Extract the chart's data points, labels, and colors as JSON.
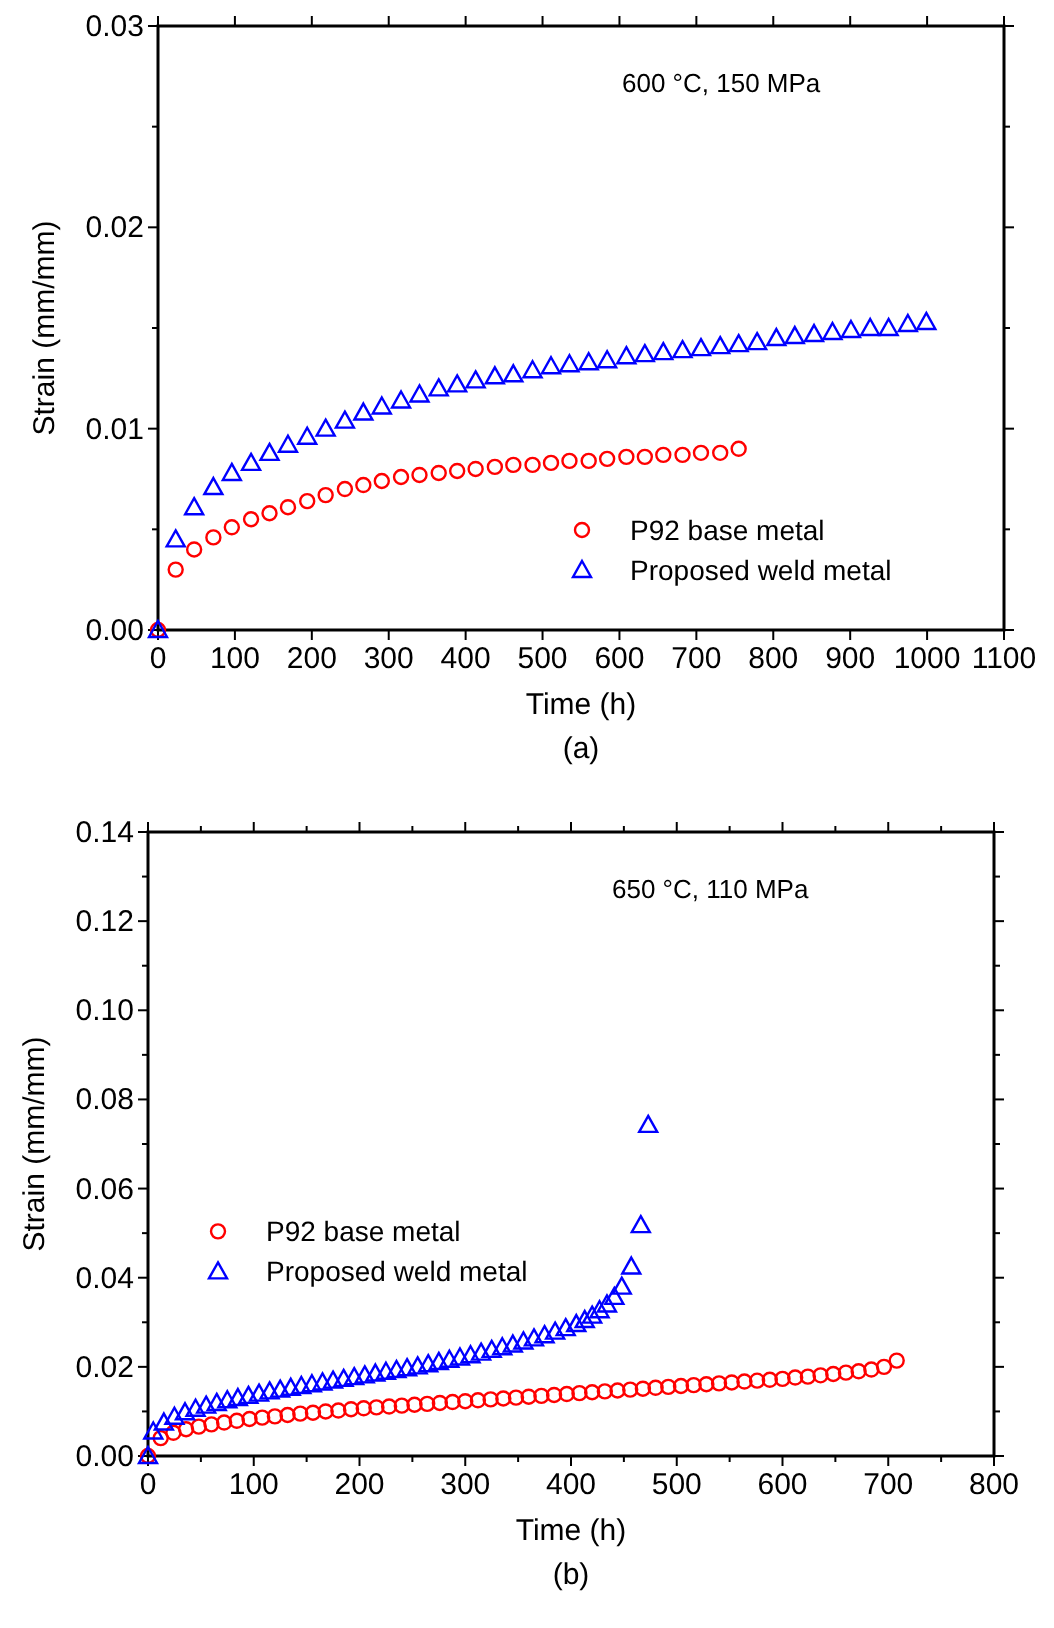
{
  "chart_data": [
    {
      "type": "scatter",
      "xlabel": "Time (h)",
      "ylabel": "Strain (mm/mm)",
      "annotations": [
        "600 °C, 150 MPa",
        "(a)"
      ],
      "xlim": [
        0,
        1100
      ],
      "xticks": [
        0,
        100,
        200,
        300,
        400,
        500,
        600,
        700,
        800,
        900,
        1000,
        1100
      ],
      "ylim": [
        0,
        0.03
      ],
      "yticks": [
        {
          "value": 0,
          "label": "0.00"
        },
        {
          "value": 0.005,
          "label": null
        },
        {
          "value": 0.01,
          "label": "0.01"
        },
        {
          "value": 0.015,
          "label": null
        },
        {
          "value": 0.02,
          "label": "0.02"
        },
        {
          "value": 0.025,
          "label": null
        },
        {
          "value": 0.03,
          "label": "0.03"
        }
      ],
      "grid": false,
      "legend": "bottom right",
      "series": [
        {
          "name": "P92 base metal",
          "color": "#ff0000",
          "marker": "circle",
          "x": [
            0,
            23,
            47,
            72,
            96,
            121,
            145,
            169,
            194,
            218,
            243,
            267,
            291,
            316,
            340,
            365,
            389,
            413,
            438,
            462,
            487,
            511,
            535,
            560,
            584,
            609,
            633,
            657,
            682,
            706,
            731,
            755
          ],
          "values": [
            0,
            0.003,
            0.004,
            0.0046,
            0.0051,
            0.0055,
            0.0058,
            0.0061,
            0.0064,
            0.0067,
            0.007,
            0.0072,
            0.0074,
            0.0076,
            0.0077,
            0.0078,
            0.0079,
            0.008,
            0.0081,
            0.0082,
            0.0082,
            0.0083,
            0.0084,
            0.0084,
            0.0085,
            0.0086,
            0.0086,
            0.0087,
            0.0087,
            0.0088,
            0.0088,
            0.009
          ]
        },
        {
          "name": "Proposed weld metal",
          "color": "#0000ff",
          "marker": "triangle",
          "x": [
            0,
            23,
            47,
            72,
            96,
            121,
            145,
            169,
            194,
            218,
            243,
            267,
            291,
            316,
            340,
            365,
            389,
            413,
            438,
            462,
            487,
            511,
            535,
            560,
            584,
            609,
            633,
            657,
            682,
            706,
            731,
            755,
            779,
            804,
            828,
            853,
            877,
            901,
            926,
            950,
            975,
            999
          ],
          "values": [
            0,
            0.0045,
            0.0061,
            0.0071,
            0.0078,
            0.0083,
            0.0088,
            0.0092,
            0.0096,
            0.01,
            0.0104,
            0.0108,
            0.0111,
            0.0114,
            0.0117,
            0.012,
            0.0122,
            0.0124,
            0.0126,
            0.0127,
            0.0129,
            0.0131,
            0.0132,
            0.0133,
            0.0134,
            0.0136,
            0.0137,
            0.0138,
            0.0139,
            0.014,
            0.0141,
            0.0142,
            0.0143,
            0.0145,
            0.0146,
            0.0147,
            0.0148,
            0.0149,
            0.015,
            0.015,
            0.0152,
            0.0153
          ]
        }
      ]
    },
    {
      "type": "scatter",
      "xlabel": "Time (h)",
      "ylabel": "Strain (mm/mm)",
      "annotations": [
        "650 °C, 110 MPa",
        "(b)"
      ],
      "xlim": [
        0,
        800
      ],
      "xticks": [
        0,
        {
          "value": 50,
          "label": null
        },
        100,
        {
          "value": 150,
          "label": null
        },
        200,
        {
          "value": 250,
          "label": null
        },
        300,
        {
          "value": 350,
          "label": null
        },
        400,
        {
          "value": 450,
          "label": null
        },
        500,
        {
          "value": 550,
          "label": null
        },
        600,
        {
          "value": 650,
          "label": null
        },
        700,
        {
          "value": 750,
          "label": null
        },
        800
      ],
      "ylim": [
        0,
        0.14
      ],
      "yticks": [
        {
          "value": 0,
          "label": "0.00"
        },
        {
          "value": 0.01,
          "label": null
        },
        {
          "value": 0.02,
          "label": "0.02"
        },
        {
          "value": 0.03,
          "label": null
        },
        {
          "value": 0.04,
          "label": "0.04"
        },
        {
          "value": 0.05,
          "label": null
        },
        {
          "value": 0.06,
          "label": "0.06"
        },
        {
          "value": 0.07,
          "label": null
        },
        {
          "value": 0.08,
          "label": "0.08"
        },
        {
          "value": 0.09,
          "label": null
        },
        {
          "value": 0.1,
          "label": "0.10"
        },
        {
          "value": 0.11,
          "label": null
        },
        {
          "value": 0.12,
          "label": "0.12"
        },
        {
          "value": 0.13,
          "label": null
        },
        {
          "value": 0.14,
          "label": "0.14"
        }
      ],
      "grid": false,
      "legend": "left",
      "series": [
        {
          "name": "P92 base metal",
          "color": "#ff0000",
          "marker": "circle",
          "x": [
            0,
            12,
            24,
            36,
            48,
            60,
            72,
            84,
            96,
            108,
            120,
            132,
            144,
            156,
            168,
            180,
            192,
            204,
            216,
            228,
            240,
            252,
            264,
            276,
            288,
            300,
            312,
            324,
            336,
            348,
            360,
            372,
            384,
            396,
            408,
            420,
            432,
            444,
            456,
            468,
            480,
            492,
            504,
            516,
            528,
            540,
            552,
            564,
            576,
            588,
            600,
            612,
            624,
            636,
            648,
            660,
            672,
            684,
            696,
            708
          ],
          "values": [
            0,
            0.004,
            0.0052,
            0.006,
            0.0066,
            0.0071,
            0.0075,
            0.0079,
            0.0083,
            0.0086,
            0.0089,
            0.0092,
            0.0095,
            0.0097,
            0.01,
            0.0102,
            0.0105,
            0.0107,
            0.0109,
            0.0111,
            0.0113,
            0.0115,
            0.0117,
            0.0119,
            0.0121,
            0.0123,
            0.0125,
            0.0127,
            0.0129,
            0.0131,
            0.0133,
            0.0135,
            0.0137,
            0.0139,
            0.0141,
            0.0143,
            0.0145,
            0.0147,
            0.0149,
            0.0151,
            0.0153,
            0.0155,
            0.0157,
            0.0159,
            0.0161,
            0.0163,
            0.0165,
            0.0167,
            0.0169,
            0.0171,
            0.0173,
            0.0176,
            0.0178,
            0.0181,
            0.0184,
            0.0187,
            0.019,
            0.0194,
            0.02,
            0.0214
          ]
        },
        {
          "name": "Proposed weld metal",
          "color": "#0000ff",
          "marker": "triangle",
          "x": [
            0,
            5,
            15,
            25,
            35,
            45,
            55,
            65,
            75,
            85,
            95,
            105,
            115,
            125,
            135,
            145,
            155,
            165,
            175,
            185,
            195,
            205,
            215,
            225,
            235,
            245,
            255,
            265,
            275,
            285,
            295,
            305,
            315,
            325,
            335,
            345,
            355,
            365,
            375,
            385,
            395,
            405,
            413,
            420,
            427,
            434,
            441,
            448,
            457,
            466,
            473
          ],
          "values": [
            0,
            0.0055,
            0.0075,
            0.0088,
            0.0098,
            0.0106,
            0.0113,
            0.0119,
            0.0125,
            0.013,
            0.0135,
            0.014,
            0.0145,
            0.0149,
            0.0153,
            0.0157,
            0.0161,
            0.0165,
            0.0169,
            0.0173,
            0.0177,
            0.0181,
            0.0185,
            0.0189,
            0.0193,
            0.0197,
            0.0201,
            0.0206,
            0.0211,
            0.0216,
            0.0221,
            0.0226,
            0.0232,
            0.0238,
            0.0244,
            0.025,
            0.0257,
            0.0264,
            0.0271,
            0.0279,
            0.0287,
            0.0296,
            0.0305,
            0.0315,
            0.0327,
            0.034,
            0.0357,
            0.038,
            0.0425,
            0.0518,
            0.0743
          ]
        }
      ]
    }
  ]
}
